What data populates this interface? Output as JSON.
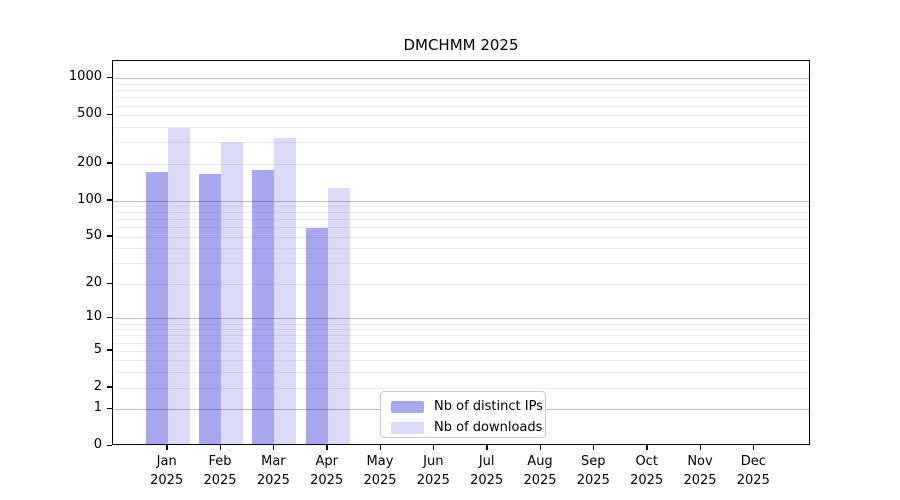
{
  "chart_data": {
    "type": "bar",
    "title": "DMCHMM 2025",
    "x_categories": [
      {
        "month": "Jan",
        "year": "2025"
      },
      {
        "month": "Feb",
        "year": "2025"
      },
      {
        "month": "Mar",
        "year": "2025"
      },
      {
        "month": "Apr",
        "year": "2025"
      },
      {
        "month": "May",
        "year": "2025"
      },
      {
        "month": "Jun",
        "year": "2025"
      },
      {
        "month": "Jul",
        "year": "2025"
      },
      {
        "month": "Aug",
        "year": "2025"
      },
      {
        "month": "Sep",
        "year": "2025"
      },
      {
        "month": "Oct",
        "year": "2025"
      },
      {
        "month": "Nov",
        "year": "2025"
      },
      {
        "month": "Dec",
        "year": "2025"
      }
    ],
    "series": [
      {
        "name": "Nb of distinct IPs",
        "color": "#a8a8f0",
        "values": [
          166,
          158,
          171,
          57,
          0,
          0,
          0,
          0,
          0,
          0,
          0,
          0
        ]
      },
      {
        "name": "Nb of downloads",
        "color": "#dbdbf9",
        "values": [
          376,
          290,
          313,
          122,
          0,
          0,
          0,
          0,
          0,
          0,
          0,
          0
        ]
      }
    ],
    "y_axis": {
      "scale": "log10(value+1)",
      "tick_values": [
        0,
        1,
        2,
        5,
        10,
        20,
        50,
        100,
        200,
        500,
        1000
      ],
      "top_value": 1380
    },
    "gridlines": {
      "major": [
        1,
        10,
        100,
        1000
      ],
      "minor": [
        2,
        3,
        4,
        5,
        6,
        7,
        8,
        9,
        20,
        30,
        40,
        50,
        60,
        70,
        80,
        90,
        200,
        300,
        400,
        500,
        600,
        700,
        800,
        900
      ]
    },
    "legend": {
      "entries": [
        "Nb of distinct IPs",
        "Nb of downloads"
      ]
    },
    "grid": "on",
    "legend_position": "bottom-center"
  }
}
